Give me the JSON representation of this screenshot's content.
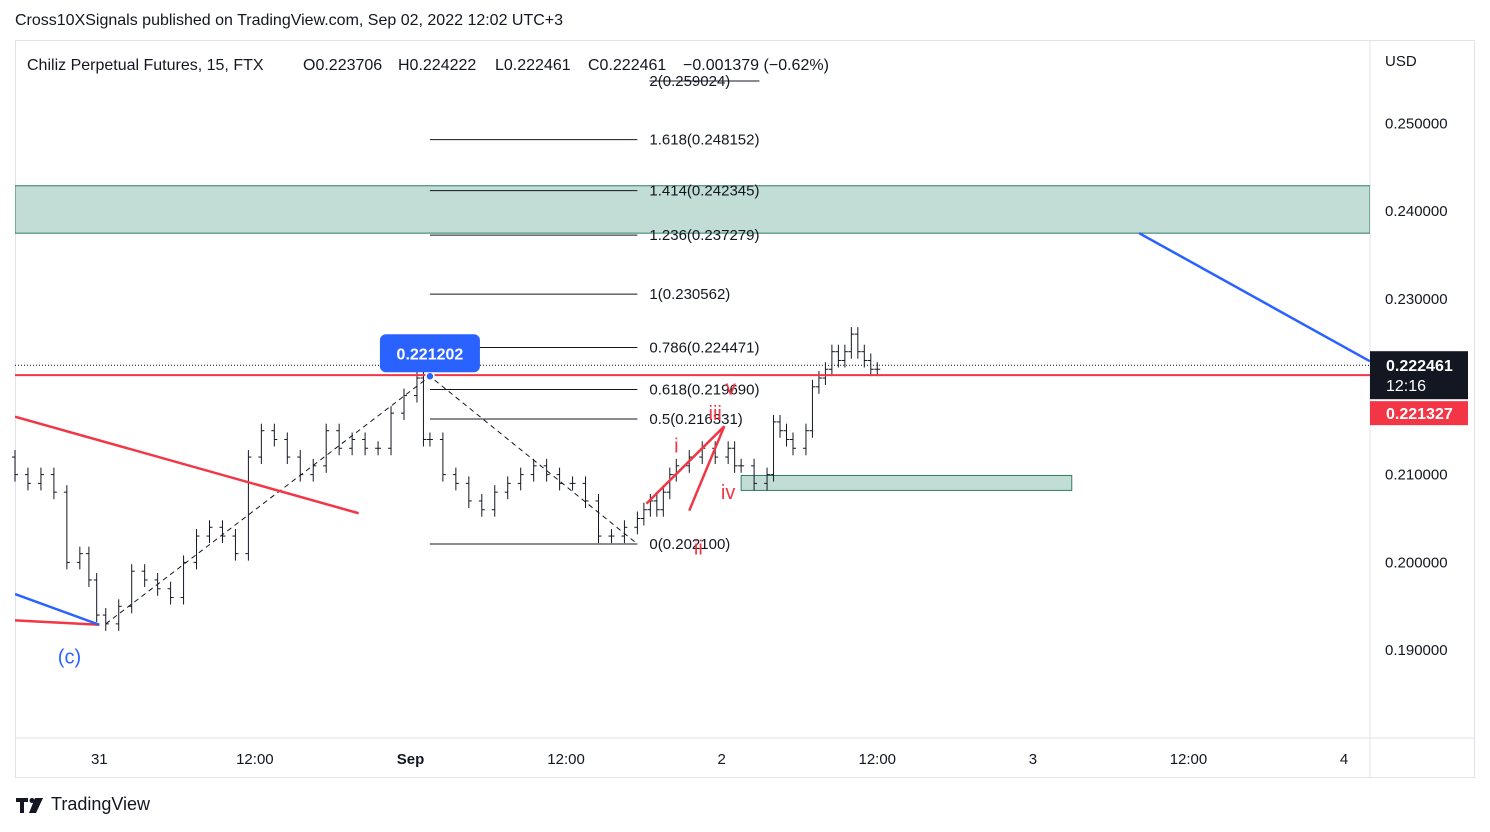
{
  "header": {
    "publish_line": "Cross10XSignals published on TradingView.com, Sep 02, 2022 12:02 UTC+3"
  },
  "legend": {
    "symbol": "Chiliz Perpetual Futures, 15, FTX",
    "open": "O0.223706",
    "high": "H0.224222",
    "low": "L0.222461",
    "close": "C0.222461",
    "change": "−0.001379 (−0.62%)"
  },
  "footer": {
    "brand": "TradingView"
  },
  "chart_data": {
    "type": "line",
    "title": "Chiliz Perpetual Futures, 15, FTX",
    "currency_label": "USD",
    "ylim": [
      0.18,
      0.2595
    ],
    "y_ticks": [
      "0.250000",
      "0.240000",
      "0.230000",
      "0.210000",
      "0.200000",
      "0.190000"
    ],
    "y_tick_values": [
      0.25,
      0.24,
      0.23,
      0.21,
      0.2,
      0.19
    ],
    "x_ticks": [
      "31",
      "12:00",
      "Sep",
      "12:00",
      "2",
      "12:00",
      "3",
      "12:00",
      "4"
    ],
    "x_tick_hours": [
      3,
      15,
      27,
      39,
      51,
      63,
      75,
      87,
      99
    ],
    "xlim_hours": [
      -3.5,
      101
    ],
    "price_series_hours": [
      -3.5,
      -2.5,
      -1.5,
      -0.5,
      0.5,
      1.5,
      2.2,
      2.8,
      3.5,
      4.5,
      5.5,
      6.5,
      7.5,
      8.5,
      9.5,
      10.5,
      11.5,
      12.5,
      13.5,
      14.5,
      15.5,
      16.5,
      17.5,
      18.5,
      19.5,
      20.5,
      21.5,
      22.5,
      23.5,
      24.5,
      25.5,
      26.5,
      27.5,
      28,
      28.5,
      29.5,
      30.5,
      31.5,
      32.5,
      33.5,
      34.5,
      35.5,
      36.5,
      37.5,
      38.5,
      39.5,
      40.5,
      41.5,
      42.5,
      43.5,
      44.5,
      45,
      45.5,
      46,
      46.5,
      47,
      47.5,
      48.5,
      49.5,
      50.5,
      51.5,
      52,
      52.5,
      53.5,
      54.5,
      55,
      55.5,
      56,
      56.5,
      57.5,
      58,
      58.5,
      59,
      59.5,
      60,
      60.5,
      61,
      61.5,
      62,
      62.5,
      63
    ],
    "price_series": [
      0.212,
      0.21,
      0.209,
      0.21,
      0.208,
      0.2,
      0.201,
      0.198,
      0.194,
      0.193,
      0.195,
      0.199,
      0.198,
      0.197,
      0.196,
      0.2,
      0.203,
      0.204,
      0.203,
      0.201,
      0.212,
      0.215,
      0.214,
      0.212,
      0.21,
      0.211,
      0.215,
      0.213,
      0.214,
      0.213,
      0.213,
      0.217,
      0.219,
      0.221,
      0.214,
      0.214,
      0.21,
      0.209,
      0.207,
      0.206,
      0.208,
      0.209,
      0.21,
      0.211,
      0.21,
      0.209,
      0.209,
      0.207,
      0.203,
      0.203,
      0.204,
      0.205,
      0.206,
      0.207,
      0.206,
      0.208,
      0.21,
      0.211,
      0.212,
      0.213,
      0.212,
      0.213,
      0.211,
      0.211,
      0.209,
      0.21,
      0.216,
      0.215,
      0.214,
      0.213,
      0.215,
      0.22,
      0.221,
      0.222,
      0.224,
      0.223,
      0.224,
      0.226,
      0.224,
      0.223,
      0.222
    ],
    "current_price": "0.222461",
    "countdown": "12:16",
    "red_line_price": "0.221327",
    "red_line_value": 0.221327,
    "crosshair_label": "0.221202",
    "crosshair_value": 0.221202,
    "fib_levels": [
      {
        "label": "2(0.259024)",
        "value": 0.259024
      },
      {
        "label": "1.618(0.248152)",
        "value": 0.248152
      },
      {
        "label": "1.414(0.242345)",
        "value": 0.242345
      },
      {
        "label": "1.236(0.237279)",
        "value": 0.237279
      },
      {
        "label": "1(0.230562)",
        "value": 0.230562
      },
      {
        "label": "0.786(0.224471)",
        "value": 0.224471
      },
      {
        "label": "0.618(0.219690)",
        "value": 0.21969
      },
      {
        "label": "0.5(0.216331)",
        "value": 0.216331
      },
      {
        "label": "0(0.202100)",
        "value": 0.2021
      }
    ],
    "fib_x_hours": [
      28.5,
      44.5
    ],
    "zones": [
      {
        "name": "resistance-zone",
        "y_from": 0.2375,
        "y_to": 0.2429,
        "x_from_hours": -3.5,
        "x_to_hours": 101,
        "color": "#c2ddd5"
      },
      {
        "name": "support-zone",
        "y_from": 0.2082,
        "y_to": 0.2099,
        "x_from_hours": 52.5,
        "x_to_hours": 78,
        "color": "#c2ddd5"
      }
    ],
    "wave_labels": [
      {
        "text": "i",
        "color": "#f23645",
        "x_hours": 47.5,
        "y": 0.2125
      },
      {
        "text": "ii",
        "color": "#f23645",
        "x_hours": 49.2,
        "y": 0.2009
      },
      {
        "text": "iii",
        "color": "#f23645",
        "x_hours": 50.5,
        "y": 0.2162
      },
      {
        "text": "iv",
        "color": "#f23645",
        "x_hours": 51.5,
        "y": 0.2072
      },
      {
        "text": "v",
        "color": "#f23645",
        "x_hours": 51.7,
        "y": 0.2191
      },
      {
        "text": "(c)",
        "color": "#2962ff",
        "x_hours": 0.7,
        "y": 0.1885
      }
    ],
    "colors": {
      "candles": "#131722",
      "red_line": "#f23645",
      "blue_line": "#2962ff",
      "crosshair_badge": "#2962ff",
      "price_badge": "#131722",
      "fib_line": "#131722",
      "grid": "#f0f3fa"
    }
  }
}
